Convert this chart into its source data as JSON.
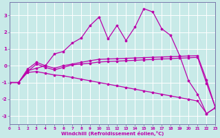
{
  "xlabel": "Windchill (Refroidissement éolien,°C)",
  "xlim": [
    0,
    23
  ],
  "ylim": [
    -3.5,
    3.8
  ],
  "yticks": [
    -3,
    -2,
    -1,
    0,
    1,
    2,
    3
  ],
  "xticks": [
    0,
    1,
    2,
    3,
    4,
    5,
    6,
    7,
    8,
    9,
    10,
    11,
    12,
    13,
    14,
    15,
    16,
    17,
    18,
    19,
    20,
    21,
    22,
    23
  ],
  "bg_color": "#c8eae8",
  "grid_color": "#ffffff",
  "line_color": "#bb00aa",
  "border_color": "#7777aa",
  "line1_y": [
    -1.0,
    -1.0,
    -0.3,
    -0.15,
    0.0,
    0.7,
    0.85,
    1.35,
    1.65,
    2.4,
    2.9,
    1.6,
    2.4,
    1.5,
    2.3,
    3.4,
    3.2,
    2.2,
    1.8,
    0.6,
    -0.9,
    -1.7,
    -2.85,
    -2.5
  ],
  "line2_y": [
    -1.0,
    -1.0,
    -0.2,
    0.2,
    0.0,
    -0.15,
    0.0,
    0.1,
    0.2,
    0.3,
    0.38,
    0.4,
    0.42,
    0.44,
    0.46,
    0.48,
    0.5,
    0.52,
    0.54,
    0.56,
    0.58,
    0.6,
    -0.85,
    -2.5
  ],
  "line3_y": [
    -1.0,
    -1.0,
    -0.35,
    0.1,
    -0.1,
    -0.25,
    -0.1,
    0.05,
    0.1,
    0.15,
    0.22,
    0.25,
    0.27,
    0.3,
    0.32,
    0.35,
    0.37,
    0.4,
    0.42,
    0.45,
    0.47,
    0.5,
    -1.05,
    -2.5
  ],
  "line4_y": [
    -1.0,
    -1.0,
    -0.4,
    -0.35,
    -0.45,
    -0.55,
    -0.6,
    -0.7,
    -0.8,
    -0.9,
    -1.0,
    -1.1,
    -1.2,
    -1.3,
    -1.4,
    -1.5,
    -1.6,
    -1.7,
    -1.8,
    -1.9,
    -2.0,
    -2.1,
    -2.85,
    -2.5
  ]
}
